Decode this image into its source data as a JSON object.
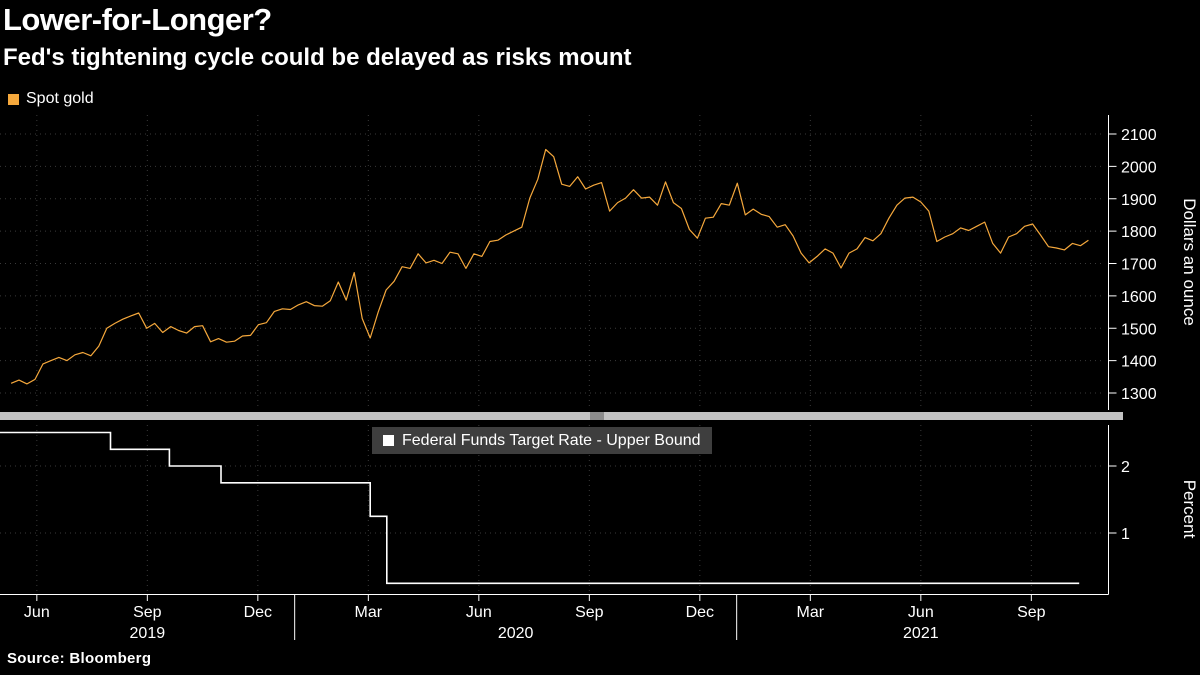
{
  "header": {
    "title": "Lower-for-Longer?",
    "subtitle": "Fed's tightening cycle could be delayed as risks mount"
  },
  "source": "Source: Bloomberg",
  "colors": {
    "background": "#000000",
    "gold": "#F5A83C",
    "fed": "#FFFFFF",
    "grid": "#3A3A3A",
    "axis": "#FFFFFF",
    "legend_fed_bg": "#3E3E3E",
    "divider": "#C2C2C2",
    "divider_handle": "#8C8C8C",
    "text": "#FFFFFF"
  },
  "chart_data": [
    {
      "type": "line",
      "name": "spot-gold",
      "legend": {
        "label": "Spot gold",
        "color": "#F5A83C",
        "position": "top-left"
      },
      "ylabel": "Dollars an ounce",
      "yaxis_side": "right",
      "yticks": [
        2100,
        2000,
        1900,
        1800,
        1700,
        1600,
        1500,
        1400,
        1300
      ],
      "ylim": [
        1247,
        2160
      ],
      "grid": true,
      "series": [
        {
          "name": "Spot gold",
          "color": "#F5A83C",
          "m_start": 0.3,
          "m_end": 29.55,
          "values": [
            1330,
            1340,
            1328,
            1342,
            1390,
            1400,
            1410,
            1400,
            1418,
            1425,
            1415,
            1445,
            1500,
            1515,
            1528,
            1538,
            1547,
            1500,
            1515,
            1487,
            1505,
            1493,
            1485,
            1505,
            1508,
            1458,
            1468,
            1457,
            1460,
            1476,
            1478,
            1511,
            1517,
            1552,
            1560,
            1558,
            1572,
            1582,
            1570,
            1568,
            1585,
            1643,
            1587,
            1672,
            1530,
            1470,
            1550,
            1618,
            1645,
            1690,
            1685,
            1730,
            1702,
            1710,
            1700,
            1735,
            1730,
            1685,
            1730,
            1722,
            1768,
            1772,
            1788,
            1800,
            1812,
            1902,
            1960,
            2052,
            2030,
            1945,
            1938,
            1968,
            1930,
            1942,
            1950,
            1862,
            1888,
            1902,
            1928,
            1902,
            1905,
            1880,
            1952,
            1888,
            1870,
            1805,
            1778,
            1840,
            1843,
            1885,
            1880,
            1948,
            1850,
            1868,
            1852,
            1845,
            1812,
            1820,
            1785,
            1732,
            1702,
            1722,
            1745,
            1732,
            1686,
            1732,
            1745,
            1780,
            1770,
            1792,
            1840,
            1880,
            1902,
            1905,
            1890,
            1862,
            1768,
            1782,
            1792,
            1810,
            1802,
            1815,
            1828,
            1762,
            1732,
            1782,
            1792,
            1815,
            1822,
            1788,
            1752,
            1748,
            1742,
            1762,
            1755,
            1772
          ]
        }
      ]
    },
    {
      "type": "step",
      "name": "fed-funds-rate",
      "legend": {
        "label": "Federal Funds Target Rate - Upper Bound",
        "color": "#FFFFFF",
        "position": "top-center"
      },
      "ylabel": "Percent",
      "yaxis_side": "right",
      "yticks": [
        2,
        1
      ],
      "ylim": [
        0.1,
        2.6
      ],
      "grid": true,
      "series": [
        {
          "name": "Federal Funds Target Rate - Upper Bound",
          "color": "#FFFFFF",
          "steps": [
            {
              "m": 0.0,
              "v": 2.5
            },
            {
              "m": 3.0,
              "v": 2.25
            },
            {
              "m": 4.6,
              "v": 2.0
            },
            {
              "m": 6.0,
              "v": 1.75
            },
            {
              "m": 10.05,
              "v": 1.25
            },
            {
              "m": 10.5,
              "v": 0.25
            }
          ],
          "end_m": 29.3
        }
      ]
    }
  ],
  "xaxis": {
    "months_span": 30,
    "ticks": [
      {
        "label": "Jun",
        "m": 1
      },
      {
        "label": "Sep",
        "m": 4
      },
      {
        "label": "Dec",
        "m": 7
      },
      {
        "label": "Mar",
        "m": 10
      },
      {
        "label": "Jun",
        "m": 13
      },
      {
        "label": "Sep",
        "m": 16
      },
      {
        "label": "Dec",
        "m": 19
      },
      {
        "label": "Mar",
        "m": 22
      },
      {
        "label": "Jun",
        "m": 25
      },
      {
        "label": "Sep",
        "m": 28
      }
    ],
    "years": [
      {
        "label": "2019",
        "m": 4
      },
      {
        "label": "2020",
        "m": 14
      },
      {
        "label": "2021",
        "m": 25
      }
    ],
    "separators_m": [
      8,
      20
    ]
  }
}
